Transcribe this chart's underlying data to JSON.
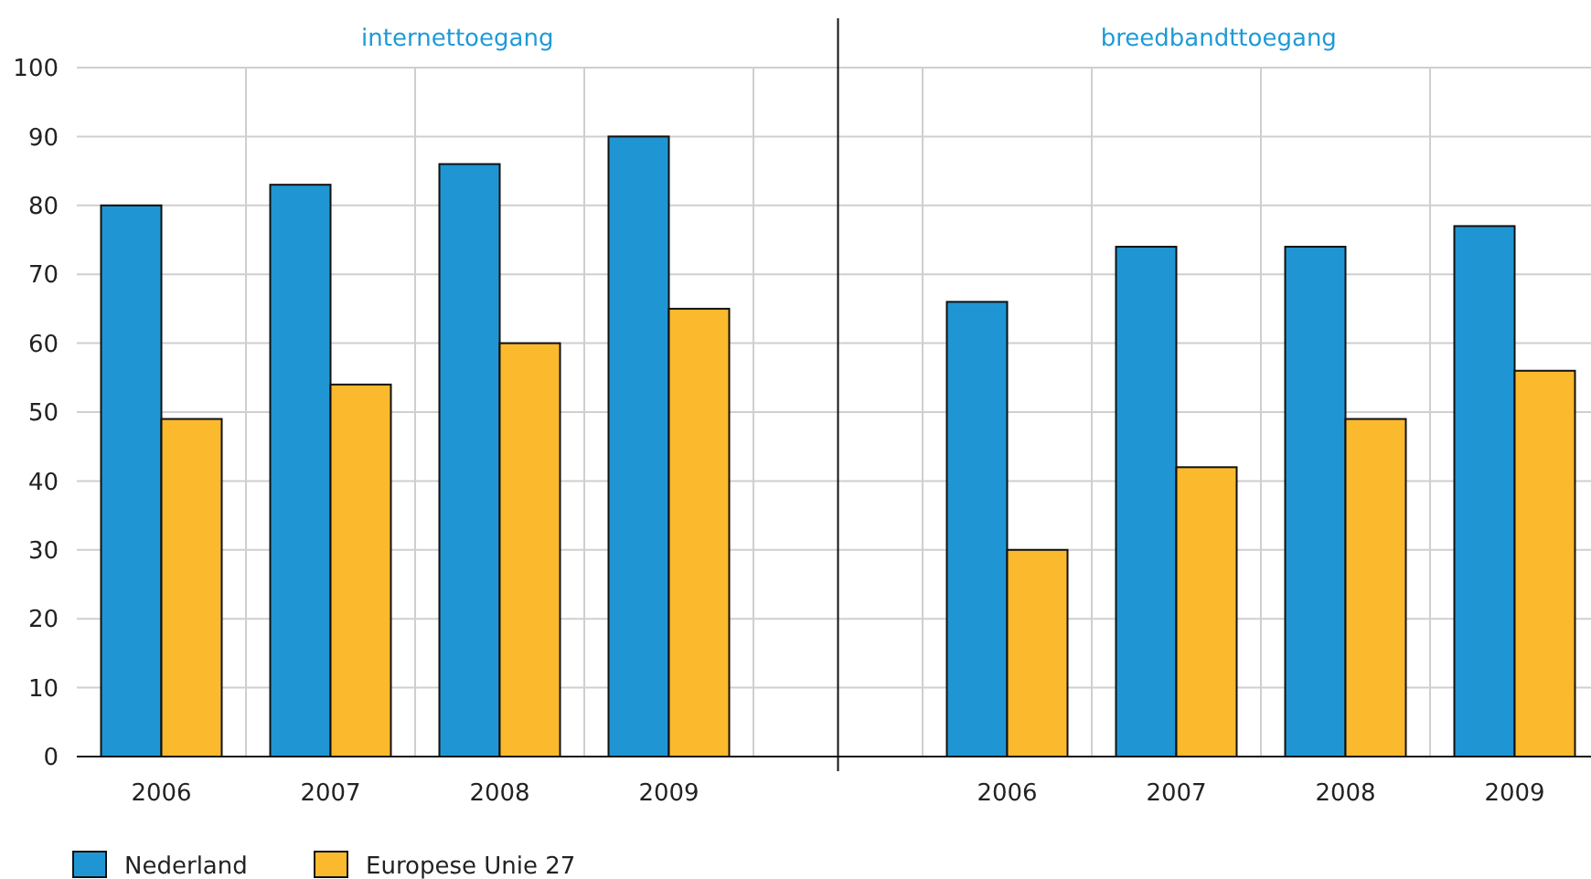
{
  "chart_data": [
    {
      "type": "bar",
      "title": "internettoegang",
      "categories": [
        "2006",
        "2007",
        "2008",
        "2009"
      ],
      "series": [
        {
          "name": "Nederland",
          "color": "#1f96d3",
          "values": [
            80,
            83,
            86,
            90
          ]
        },
        {
          "name": "Europese Unie 27",
          "color": "#fbb92d",
          "values": [
            49,
            54,
            60,
            65
          ]
        }
      ],
      "ylim": [
        0,
        100
      ],
      "yticks": [
        0,
        10,
        20,
        30,
        40,
        50,
        60,
        70,
        80,
        90,
        100
      ],
      "grid": true,
      "legend": "bottom"
    },
    {
      "type": "bar",
      "title": "breedbandttoegang",
      "categories": [
        "2006",
        "2007",
        "2008",
        "2009"
      ],
      "series": [
        {
          "color": "#1f96d3",
          "values": [
            66,
            74,
            74,
            77
          ]
        },
        {
          "color": "#fbb92d",
          "values": [
            30,
            42,
            49,
            56
          ]
        }
      ],
      "ylim": [
        0,
        100
      ],
      "yticks": [
        0,
        10,
        20,
        30,
        40,
        50,
        60,
        70,
        80,
        90,
        100
      ],
      "grid": true,
      "tick_labels": "x"
    }
  ]
}
